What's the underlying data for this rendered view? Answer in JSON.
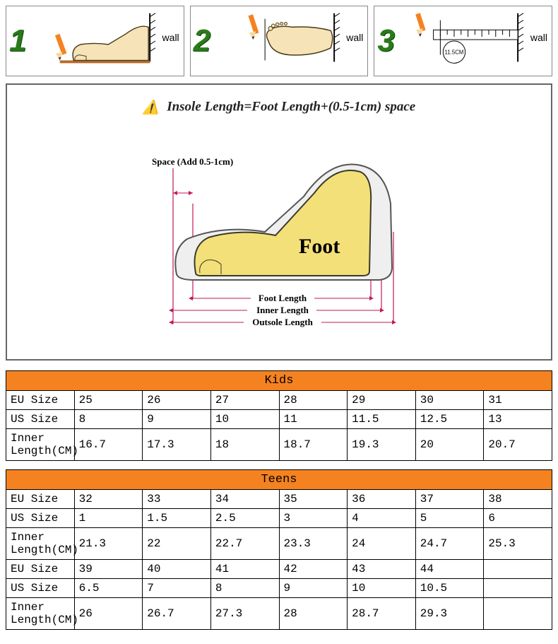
{
  "steps": {
    "wall_label": "wall",
    "numbers": [
      "1",
      "2",
      "3"
    ],
    "pencil_color": "#f58220",
    "foot_fill": "#f6e4b8",
    "ground_color": "#b86a2a",
    "ruler_value": "11.5CM",
    "num_color": "#2a7a1a"
  },
  "note": {
    "warn_icon": "⚠️",
    "text": "Insole Length=Foot Length+(0.5-1cm) space"
  },
  "diagram": {
    "space_label": "Space (Add 0.5-1cm)",
    "foot_label": "Foot",
    "dim_labels": [
      "Foot Length",
      "Inner Length",
      "Outsole Length"
    ],
    "foot_fill": "#f4e079",
    "shoe_fill": "#efefef",
    "arrow_color": "#c2185b",
    "text_color": "#000000"
  },
  "tables": {
    "kids": {
      "title": "Kids",
      "rows": [
        {
          "label": "EU Size",
          "vals": [
            "25",
            "26",
            "27",
            "28",
            "29",
            "30",
            "31"
          ]
        },
        {
          "label": "US Size",
          "vals": [
            "8",
            "9",
            "10",
            "11",
            "11.5",
            "12.5",
            "13"
          ]
        },
        {
          "label": "Inner Length(CM)",
          "vals": [
            "16.7",
            "17.3",
            "18",
            "18.7",
            "19.3",
            "20",
            "20.7"
          ]
        }
      ]
    },
    "teens": {
      "title": "Teens",
      "rows": [
        {
          "label": "EU Size",
          "vals": [
            "32",
            "33",
            "34",
            "35",
            "36",
            "37",
            "38"
          ]
        },
        {
          "label": "US Size",
          "vals": [
            "1",
            "1.5",
            "2.5",
            "3",
            "4",
            "5",
            "6"
          ]
        },
        {
          "label": "Inner Length(CM)",
          "vals": [
            "21.3",
            "22",
            "22.7",
            "23.3",
            "24",
            "24.7",
            "25.3"
          ]
        },
        {
          "label": "EU Size",
          "vals": [
            "39",
            "40",
            "41",
            "42",
            "43",
            "44",
            ""
          ]
        },
        {
          "label": "US Size",
          "vals": [
            "6.5",
            "7",
            "8",
            "9",
            "10",
            "10.5",
            ""
          ]
        },
        {
          "label": "Inner Length(CM)",
          "vals": [
            "26",
            "26.7",
            "27.3",
            "28",
            "28.7",
            "29.3",
            ""
          ]
        }
      ]
    },
    "header_bg": "#f58220"
  }
}
